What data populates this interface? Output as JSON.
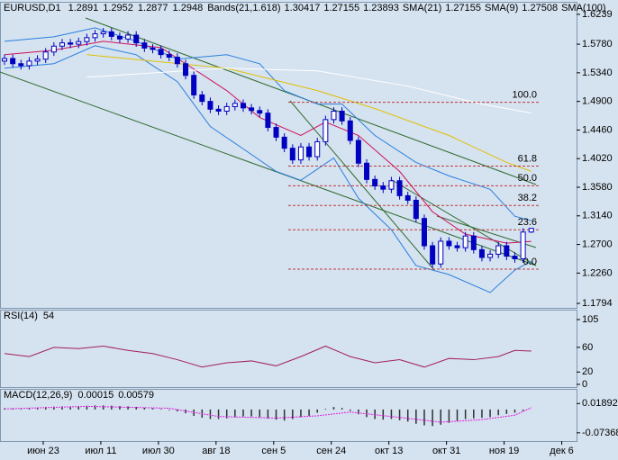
{
  "chart_data": [
    {
      "type": "candlestick",
      "title": "EURUSD,D1",
      "header_values": [
        1.2891,
        1.2952,
        1.2877,
        1.2948
      ],
      "indicators": [
        {
          "name": "Bands(21,1.618)",
          "label_values": [
            1.30417,
            1.27155,
            1.23893
          ],
          "color": "#2a7fe0"
        },
        {
          "name": "SMA(21)",
          "label_values": [
            1.27155
          ],
          "color": "#d0105a"
        },
        {
          "name": "SMA(9)",
          "label_values": [
            1.27508
          ],
          "color": "#c010c0"
        },
        {
          "name": "SMA(100)"
        }
      ],
      "open": [
        1.552,
        1.556,
        1.548,
        1.545,
        1.552,
        1.555,
        1.566,
        1.575,
        1.58,
        1.578,
        1.582,
        1.588,
        1.594,
        1.597,
        1.59,
        1.586,
        1.592,
        1.58,
        1.572,
        1.57,
        1.562,
        1.558,
        1.548,
        1.53,
        1.5,
        1.49,
        1.478,
        1.475,
        1.482,
        1.487,
        1.48,
        1.476,
        1.472,
        1.45,
        1.435,
        1.418,
        1.4,
        1.42,
        1.405,
        1.428,
        1.462,
        1.475,
        1.46,
        1.43,
        1.395,
        1.37,
        1.36,
        1.355,
        1.368,
        1.345,
        1.338,
        1.31,
        1.268,
        1.24,
        1.275,
        1.268,
        1.265,
        1.283,
        1.262,
        1.25,
        1.255,
        1.268,
        1.252,
        1.248,
        1.2891
      ],
      "high": [
        1.562,
        1.562,
        1.554,
        1.558,
        1.561,
        1.572,
        1.581,
        1.586,
        1.586,
        1.588,
        1.594,
        1.6,
        1.603,
        1.603,
        1.596,
        1.598,
        1.598,
        1.586,
        1.578,
        1.576,
        1.568,
        1.564,
        1.554,
        1.536,
        1.506,
        1.496,
        1.484,
        1.488,
        1.493,
        1.493,
        1.486,
        1.482,
        1.478,
        1.456,
        1.441,
        1.424,
        1.426,
        1.426,
        1.434,
        1.468,
        1.481,
        1.481,
        1.466,
        1.436,
        1.401,
        1.376,
        1.366,
        1.374,
        1.374,
        1.351,
        1.344,
        1.316,
        1.274,
        1.281,
        1.281,
        1.274,
        1.289,
        1.289,
        1.268,
        1.261,
        1.274,
        1.274,
        1.258,
        1.295,
        1.2952
      ],
      "low": [
        1.546,
        1.542,
        1.539,
        1.539,
        1.546,
        1.549,
        1.56,
        1.569,
        1.572,
        1.572,
        1.576,
        1.582,
        1.588,
        1.584,
        1.58,
        1.58,
        1.574,
        1.566,
        1.564,
        1.556,
        1.552,
        1.542,
        1.524,
        1.494,
        1.484,
        1.472,
        1.469,
        1.469,
        1.476,
        1.474,
        1.47,
        1.466,
        1.444,
        1.429,
        1.412,
        1.394,
        1.394,
        1.399,
        1.399,
        1.422,
        1.456,
        1.454,
        1.424,
        1.389,
        1.364,
        1.354,
        1.349,
        1.349,
        1.339,
        1.332,
        1.304,
        1.262,
        1.234,
        1.234,
        1.262,
        1.259,
        1.259,
        1.256,
        1.244,
        1.244,
        1.249,
        1.246,
        1.242,
        1.242,
        1.2877
      ],
      "close": [
        1.556,
        1.548,
        1.545,
        1.552,
        1.555,
        1.566,
        1.575,
        1.58,
        1.578,
        1.582,
        1.588,
        1.594,
        1.597,
        1.59,
        1.586,
        1.592,
        1.58,
        1.572,
        1.57,
        1.562,
        1.558,
        1.548,
        1.53,
        1.5,
        1.49,
        1.478,
        1.475,
        1.482,
        1.487,
        1.48,
        1.476,
        1.472,
        1.45,
        1.435,
        1.418,
        1.4,
        1.42,
        1.405,
        1.428,
        1.462,
        1.475,
        1.46,
        1.43,
        1.395,
        1.37,
        1.36,
        1.355,
        1.368,
        1.345,
        1.338,
        1.31,
        1.268,
        1.24,
        1.275,
        1.268,
        1.265,
        1.283,
        1.262,
        1.25,
        1.255,
        1.268,
        1.252,
        1.248,
        1.2891,
        1.2948
      ],
      "color": "#0000c0",
      "series": [
        {
          "color": "#2a7fe0",
          "x": [
            0,
            6,
            11,
            16,
            21,
            27,
            31,
            34,
            38,
            41,
            45,
            50,
            54,
            59,
            62,
            64
          ],
          "values": [
            1.5825,
            1.5894,
            1.6032,
            1.5825,
            1.5549,
            1.5618,
            1.548,
            1.5066,
            1.4859,
            1.4859,
            1.4376,
            1.3962,
            1.3755,
            1.3548,
            1.3134,
            1.3065
          ]
        },
        {
          "color": "#2a7fe0",
          "x": [
            0,
            6,
            11,
            16,
            21,
            25,
            29,
            33,
            36,
            40,
            43,
            47,
            50,
            54,
            59,
            62,
            64
          ],
          "values": [
            1.541,
            1.548,
            1.5756,
            1.5618,
            1.5204,
            1.4514,
            1.417,
            1.3824,
            1.3686,
            1.403,
            1.341,
            1.2927,
            1.2375,
            1.2237,
            1.1961,
            1.2306,
            1.2444
          ]
        },
        {
          "color": "#d0105a",
          "x": [
            0,
            6,
            12,
            19,
            22,
            27,
            31,
            36,
            39,
            43,
            48,
            52,
            56,
            61,
            64
          ],
          "values": [
            1.5618,
            1.5687,
            1.5825,
            1.5728,
            1.548,
            1.5066,
            1.4652,
            1.4376,
            1.4583,
            1.4376,
            1.3824,
            1.3203,
            1.2858,
            1.272,
            1.2747
          ]
        },
        {
          "color": "#e0c000",
          "x": [
            10,
            27,
            38,
            45,
            54,
            61,
            64
          ],
          "values": [
            1.5618,
            1.541,
            1.5066,
            1.479,
            1.4376,
            1.3962,
            1.3824
          ]
        },
        {
          "color": "#ffffff",
          "x": [
            10,
            27,
            38,
            49,
            58,
            64
          ],
          "values": [
            1.5273,
            1.541,
            1.5369,
            1.5135,
            1.4859,
            1.4721
          ]
        }
      ],
      "fibo": {
        "high": 1.4886,
        "low": 1.232,
        "color": "#c03a3a",
        "levels": [
          {
            "value": 100,
            "label": "100.0"
          },
          61.8,
          {
            "value": 50,
            "label": "50.0"
          },
          38.2,
          23.6,
          {
            "value": 0,
            "label": "0.0"
          }
        ]
      },
      "xlim": [
        -0.55,
        69.5
      ],
      "ylim": [
        1.1725,
        1.6418
      ],
      "yticks": [
        1.6239,
        {
          "value": 1.578,
          "label": "1.5780"
        },
        {
          "value": 1.534,
          "label": "1.5340"
        },
        {
          "value": 1.49,
          "label": "1.4900"
        },
        {
          "value": 1.446,
          "label": "1.4460"
        },
        {
          "value": 1.402,
          "label": "1.4020"
        },
        {
          "value": 1.358,
          "label": "1.3580"
        },
        {
          "value": 1.314,
          "label": "1.3140"
        },
        {
          "value": 1.27,
          "label": "1.2700"
        },
        {
          "value": 1.226,
          "label": "1.2260"
        },
        1.1794
      ]
    },
    {
      "type": "line",
      "title": "RSI(14)",
      "label_values": [
        54
      ],
      "color": "#a0205a",
      "x": [
        0,
        3,
        6,
        9,
        12,
        15,
        18,
        21,
        24,
        27,
        30,
        33,
        36,
        39,
        42,
        45,
        48,
        51,
        54,
        57,
        60,
        62,
        64
      ],
      "values": [
        50,
        45,
        60,
        58,
        62,
        55,
        50,
        40,
        28,
        35,
        38,
        30,
        45,
        62,
        45,
        35,
        40,
        28,
        42,
        40,
        45,
        55,
        54
      ],
      "ylim": [
        -4.4,
        119.6
      ],
      "yticks": [
        105,
        60,
        20,
        0
      ]
    },
    {
      "type": "bar",
      "title": "MACD(12,26,9)",
      "label_values": [
        0.00015,
        0.00579
      ],
      "color": "#303030",
      "values": [
        0.004,
        0.003,
        0.002,
        0.004,
        0.006,
        0.008,
        0.009,
        0.01,
        0.01,
        0.011,
        0.012,
        0.013,
        0.013,
        0.012,
        0.011,
        0.01,
        0.008,
        0.006,
        0.004,
        0.002,
        -0.002,
        -0.006,
        -0.012,
        -0.02,
        -0.026,
        -0.03,
        -0.03,
        -0.028,
        -0.025,
        -0.022,
        -0.022,
        -0.024,
        -0.028,
        -0.032,
        -0.035,
        -0.03,
        -0.024,
        -0.02,
        -0.01,
        0.002,
        0.008,
        0.005,
        -0.004,
        -0.015,
        -0.024,
        -0.03,
        -0.032,
        -0.03,
        -0.034,
        -0.038,
        -0.045,
        -0.05,
        -0.052,
        -0.048,
        -0.042,
        -0.036,
        -0.03,
        -0.028,
        -0.026,
        -0.024,
        -0.018,
        -0.014,
        -0.01,
        -0.004,
        0.00015
      ],
      "signal": {
        "color": "#e020e0",
        "x": [
          0,
          10,
          20,
          26,
          33,
          38,
          42,
          48,
          53,
          58,
          62,
          64
        ],
        "values": [
          0.002,
          0.01,
          0.004,
          -0.022,
          -0.027,
          -0.02,
          -0.008,
          -0.025,
          -0.04,
          -0.032,
          -0.018,
          0.00579
        ]
      },
      "ylim": [
        -0.0997,
        0.0623
      ],
      "yticks": [
        0.01892,
        -0.07368
      ],
      "xticks": [
        {
          "value": 4.7,
          "label": "июн 23"
        },
        {
          "value": 11.7,
          "label": "июл 11"
        },
        {
          "value": 18.7,
          "label": "июл 30"
        },
        {
          "value": 25.7,
          "label": "авг 18"
        },
        {
          "value": 32.7,
          "label": "сен 5"
        },
        {
          "value": 39.7,
          "label": "сен 24"
        },
        {
          "value": 46.7,
          "label": "окт 13"
        },
        {
          "value": 53.7,
          "label": "окт 31"
        },
        {
          "value": 60.7,
          "label": "ноя 19"
        },
        {
          "value": 67.7,
          "label": "дек 6"
        }
      ]
    }
  ]
}
